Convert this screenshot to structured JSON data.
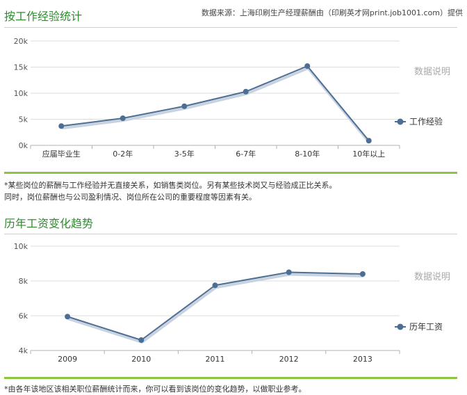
{
  "header": {
    "source": "数据来源：上海印刷生产经理薪酬由（印刷英才网print.job1001.com）提供"
  },
  "chart_data": [
    {
      "type": "line",
      "title": "按工作经验统计",
      "categories": [
        "应届毕业生",
        "0-2年",
        "3-5年",
        "6-7年",
        "8-10年",
        "10年以上"
      ],
      "series": [
        {
          "name": "工作经验",
          "values": [
            3700,
            5200,
            7500,
            10300,
            15200,
            900
          ],
          "color": "#4d6e94"
        }
      ],
      "y_ticks": [
        "20k",
        "15k",
        "10k",
        "5k",
        "0k"
      ],
      "ylim": [
        0,
        20000
      ],
      "legend_placement": "right",
      "side_label": "数据说明",
      "grid": true
    },
    {
      "type": "line",
      "title": "历年工资变化趋势",
      "categories": [
        "2009",
        "2010",
        "2011",
        "2012",
        "2013"
      ],
      "series": [
        {
          "name": "历年工资",
          "values": [
            5950,
            4600,
            7750,
            8500,
            8400
          ],
          "color": "#4d6e94"
        }
      ],
      "y_ticks": [
        "10k",
        "8k",
        "6k",
        "4k"
      ],
      "ylim": [
        4000,
        10000
      ],
      "legend_placement": "right",
      "side_label": "数据说明",
      "grid": true
    }
  ],
  "notes": {
    "chart1_line1": "*某些岗位的薪酬与工作经验并无直接关系，如销售类岗位。另有某些技术岗又与经验成正比关系。",
    "chart1_line2": "同时，岗位薪酬也与公司盈利情况、岗位所在公司的重要程度等因素有关。",
    "chart2_line1": "*由各年该地区该相关职位薪酬统计而来，你可以看到该岗位的变化趋势，以做职业参考。"
  }
}
